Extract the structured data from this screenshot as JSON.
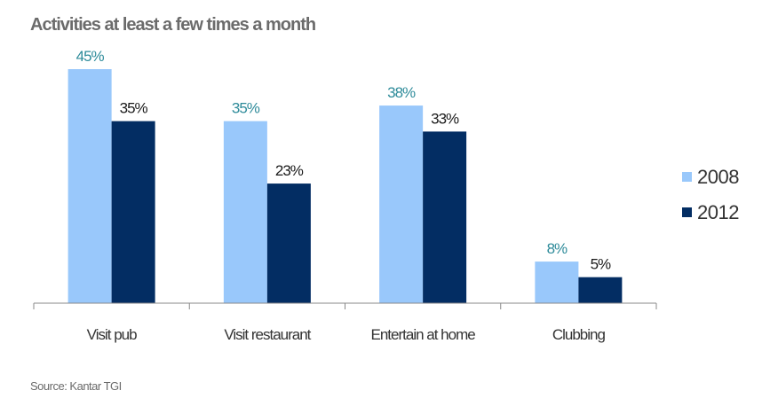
{
  "chart_data": {
    "type": "bar",
    "title": "Activities at least a few times a month",
    "categories": [
      "Visit pub",
      "Visit restaurant",
      "Entertain at home",
      "Clubbing"
    ],
    "series": [
      {
        "name": "2008",
        "values": [
          45,
          35,
          38,
          8
        ],
        "labels": [
          "45%",
          "35%",
          "38%",
          "8%"
        ],
        "color": "#99c8fb",
        "label_color": "#2e8b9a"
      },
      {
        "name": "2012",
        "values": [
          35,
          23,
          33,
          5
        ],
        "labels": [
          "35%",
          "23%",
          "33%",
          "5%"
        ],
        "color": "#032d63",
        "label_color": "#1a1a1a"
      }
    ],
    "xlabel": "",
    "ylabel": "",
    "ylim": [
      0,
      45
    ],
    "grid": false,
    "legend_position": "right"
  },
  "source": "Source: Kantar TGI"
}
